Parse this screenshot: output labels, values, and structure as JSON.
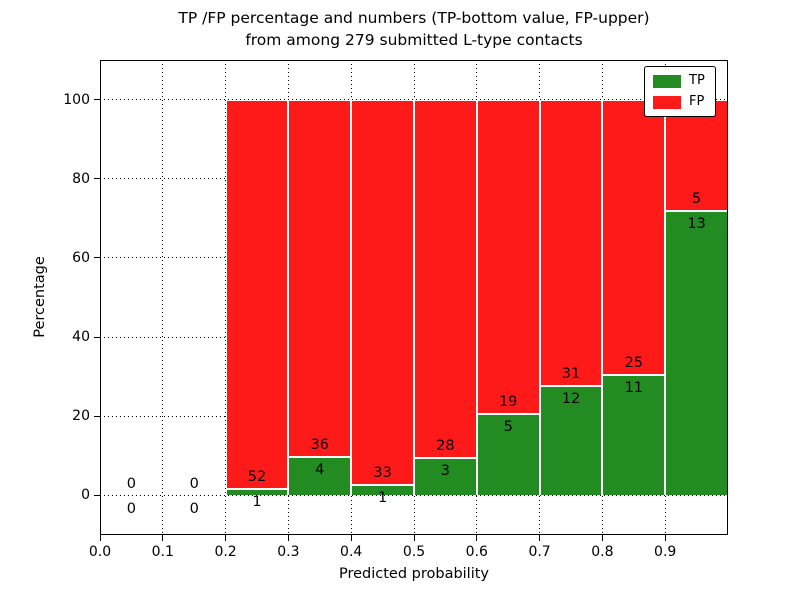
{
  "chart_data": {
    "type": "bar",
    "stacked": true,
    "title_line1": "TP /FP percentage and numbers (TP-bottom value, FP-upper)",
    "title_line2": "from among 279 submitted L-type contacts",
    "xlabel": "Predicted probability",
    "ylabel": "Percentage",
    "xlim": [
      0.0,
      1.0
    ],
    "ylim": [
      -10,
      110
    ],
    "xticks": [
      0.0,
      0.1,
      0.2,
      0.3,
      0.4,
      0.5,
      0.6,
      0.7,
      0.8,
      0.9
    ],
    "xtick_labels": [
      "0.0",
      "0.1",
      "0.2",
      "0.3",
      "0.4",
      "0.5",
      "0.6",
      "0.7",
      "0.8",
      "0.9"
    ],
    "yticks": [
      0,
      20,
      40,
      60,
      80,
      100
    ],
    "ytick_labels": [
      "0",
      "20",
      "40",
      "60",
      "80",
      "100"
    ],
    "grid": true,
    "total_contacts": 279,
    "colors": {
      "tp": "#228b22",
      "fp": "#ff1a1a",
      "bar_edge": "#ffffff",
      "grid": "#000000"
    },
    "legend": {
      "position": "upper right",
      "entries": [
        {
          "label": "TP",
          "color": "#228b22"
        },
        {
          "label": "FP",
          "color": "#ff1a1a"
        }
      ]
    },
    "bins": [
      {
        "range": [
          0.0,
          0.1
        ],
        "tp_count": 0,
        "fp_count": 0,
        "tp_pct": 0,
        "fp_pct": 0
      },
      {
        "range": [
          0.1,
          0.2
        ],
        "tp_count": 0,
        "fp_count": 0,
        "tp_pct": 0,
        "fp_pct": 0
      },
      {
        "range": [
          0.2,
          0.3
        ],
        "tp_count": 1,
        "fp_count": 52,
        "tp_pct": 1.89,
        "fp_pct": 98.11
      },
      {
        "range": [
          0.3,
          0.4
        ],
        "tp_count": 4,
        "fp_count": 36,
        "tp_pct": 10.0,
        "fp_pct": 90.0
      },
      {
        "range": [
          0.4,
          0.5
        ],
        "tp_count": 1,
        "fp_count": 33,
        "tp_pct": 2.94,
        "fp_pct": 97.06
      },
      {
        "range": [
          0.5,
          0.6
        ],
        "tp_count": 3,
        "fp_count": 28,
        "tp_pct": 9.68,
        "fp_pct": 90.32
      },
      {
        "range": [
          0.6,
          0.7
        ],
        "tp_count": 5,
        "fp_count": 19,
        "tp_pct": 20.83,
        "fp_pct": 79.17
      },
      {
        "range": [
          0.7,
          0.8
        ],
        "tp_count": 12,
        "fp_count": 31,
        "tp_pct": 27.91,
        "fp_pct": 72.09
      },
      {
        "range": [
          0.8,
          0.9
        ],
        "tp_count": 11,
        "fp_count": 25,
        "tp_pct": 30.56,
        "fp_pct": 69.44
      },
      {
        "range": [
          0.9,
          1.0
        ],
        "tp_count": 13,
        "fp_count": 5,
        "tp_pct": 72.22,
        "fp_pct": 27.78
      }
    ]
  }
}
